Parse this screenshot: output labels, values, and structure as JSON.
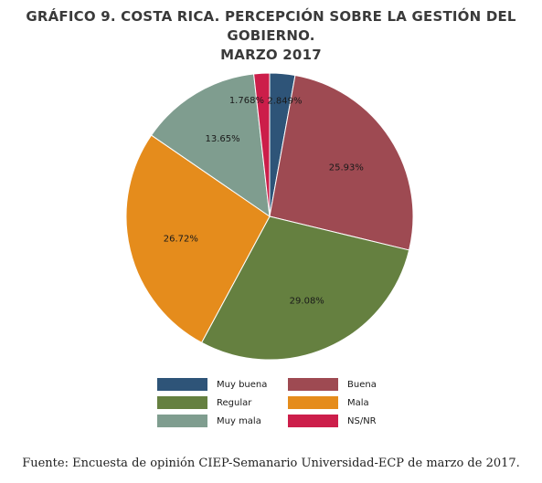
{
  "chart_data": {
    "type": "pie",
    "title": "GRÁFICO 9. COSTA RICA. PERCEPCIÓN SOBRE LA GESTIÓN DEL GOBIERNO.",
    "subtitle": "MARZO 2017",
    "slices": [
      {
        "name": "Muy buena",
        "value": 2.849,
        "label": "2.849%",
        "color": "#2e5478"
      },
      {
        "name": "Buena",
        "value": 25.93,
        "label": "25.93%",
        "color": "#9e4a52"
      },
      {
        "name": "Regular",
        "value": 29.08,
        "label": "29.08%",
        "color": "#658040"
      },
      {
        "name": "Mala",
        "value": 26.72,
        "label": "26.72%",
        "color": "#e58c1c"
      },
      {
        "name": "Muy mala",
        "value": 13.65,
        "label": "13.65%",
        "color": "#7f9d8f"
      },
      {
        "name": "NS/NR",
        "value": 1.768,
        "label": "1.768%",
        "color": "#cc1e4a"
      }
    ],
    "start": "12 o'clock",
    "direction": "clockwise",
    "legend_placement": "bottom"
  },
  "legend": [
    {
      "label": "Muy buena",
      "color": "#2e5478"
    },
    {
      "label": "Buena",
      "color": "#9e4a52"
    },
    {
      "label": "Regular",
      "color": "#658040"
    },
    {
      "label": "Mala",
      "color": "#e58c1c"
    },
    {
      "label": "Muy mala",
      "color": "#7f9d8f"
    },
    {
      "label": "NS/NR",
      "color": "#cc1e4a"
    }
  ],
  "source": "Fuente: Encuesta de opinión CIEP-Semanario Universidad-ECP de marzo de 2017."
}
